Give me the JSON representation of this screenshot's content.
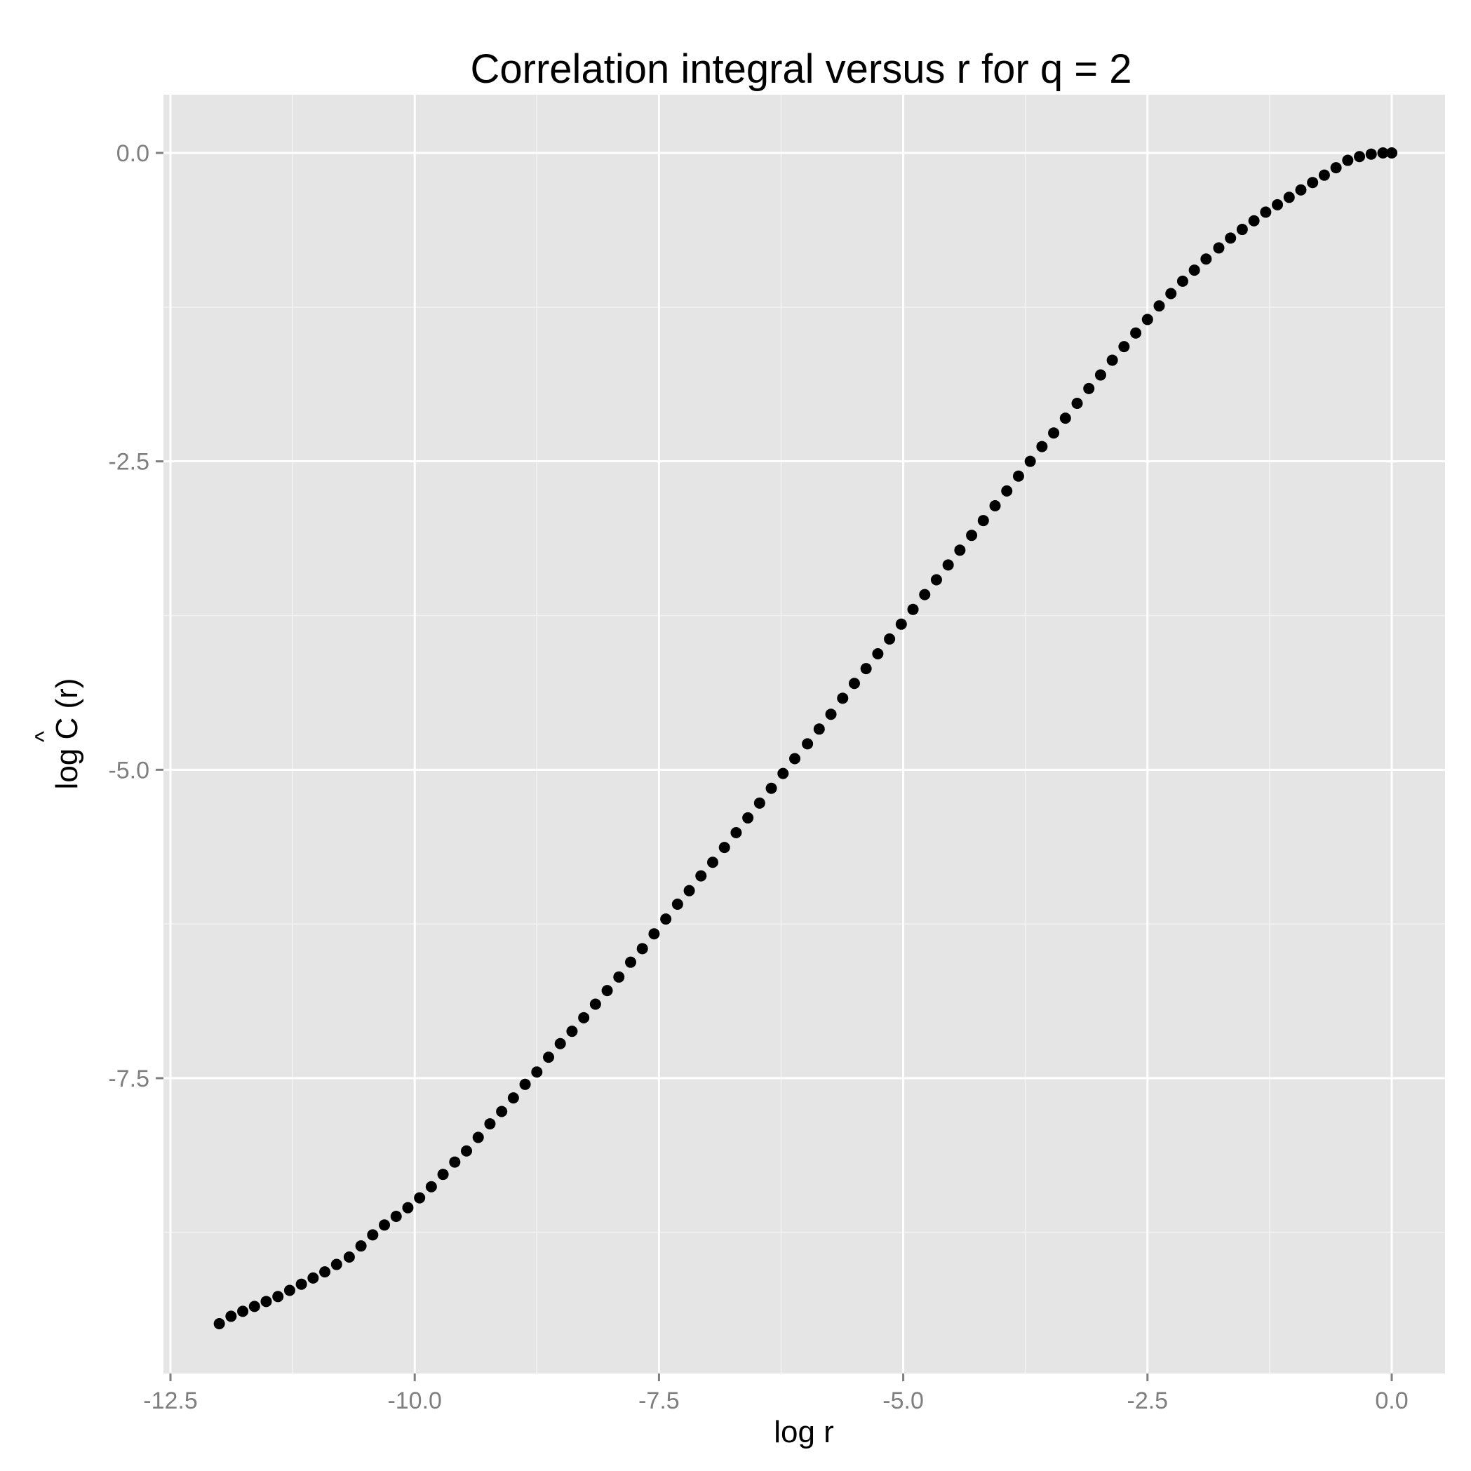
{
  "chart_data": {
    "type": "scatter",
    "title": "Correlation integral versus r for q = 2",
    "xlabel": "log r",
    "ylabel_text": "log C (r)",
    "ylabel_prefix": "log ",
    "ylabel_symbol": "C",
    "ylabel_hat": "^",
    "ylabel_suffix": " (r)",
    "xlim": [
      -12.5,
      0.0
    ],
    "ylim": [
      -9.8,
      0.5
    ],
    "xticks": [
      -12.5,
      -10.0,
      -7.5,
      -5.0,
      -2.5,
      0.0
    ],
    "xtick_labels": [
      "-12.5",
      "-10.0",
      "-7.5",
      "-5.0",
      "-2.5",
      "0.0"
    ],
    "yticks": [
      0.0,
      -2.5,
      -5.0,
      -7.5
    ],
    "ytick_labels": [
      "0.0",
      "-2.5",
      "-5.0",
      "-7.5"
    ],
    "grid": true,
    "colors": {
      "panel_bg": "#e5e5e5",
      "grid_major": "#ffffff",
      "grid_minor": "#f2f2f2",
      "point": "#000000",
      "tick_text": "#7f7f7f"
    },
    "points": [
      [
        -12.0,
        -9.49
      ],
      [
        -11.88,
        -9.43
      ],
      [
        -11.76,
        -9.39
      ],
      [
        -11.64,
        -9.35
      ],
      [
        -11.52,
        -9.31
      ],
      [
        -11.4,
        -9.27
      ],
      [
        -11.28,
        -9.22
      ],
      [
        -11.16,
        -9.17
      ],
      [
        -11.04,
        -9.12
      ],
      [
        -10.92,
        -9.07
      ],
      [
        -10.8,
        -9.01
      ],
      [
        -10.67,
        -8.95
      ],
      [
        -10.55,
        -8.86
      ],
      [
        -10.43,
        -8.77
      ],
      [
        -10.31,
        -8.69
      ],
      [
        -10.19,
        -8.62
      ],
      [
        -10.07,
        -8.55
      ],
      [
        -9.95,
        -8.47
      ],
      [
        -9.83,
        -8.38
      ],
      [
        -9.71,
        -8.28
      ],
      [
        -9.59,
        -8.18
      ],
      [
        -9.47,
        -8.09
      ],
      [
        -9.35,
        -7.98
      ],
      [
        -9.23,
        -7.87
      ],
      [
        -9.11,
        -7.77
      ],
      [
        -8.99,
        -7.66
      ],
      [
        -8.87,
        -7.55
      ],
      [
        -8.75,
        -7.45
      ],
      [
        -8.63,
        -7.33
      ],
      [
        -8.51,
        -7.22
      ],
      [
        -8.39,
        -7.12
      ],
      [
        -8.27,
        -7.01
      ],
      [
        -8.15,
        -6.9
      ],
      [
        -8.03,
        -6.79
      ],
      [
        -7.91,
        -6.68
      ],
      [
        -7.79,
        -6.56
      ],
      [
        -7.67,
        -6.45
      ],
      [
        -7.55,
        -6.33
      ],
      [
        -7.43,
        -6.21
      ],
      [
        -7.31,
        -6.09
      ],
      [
        -7.19,
        -5.98
      ],
      [
        -7.07,
        -5.86
      ],
      [
        -6.95,
        -5.75
      ],
      [
        -6.83,
        -5.63
      ],
      [
        -6.71,
        -5.51
      ],
      [
        -6.59,
        -5.39
      ],
      [
        -6.47,
        -5.27
      ],
      [
        -6.35,
        -5.15
      ],
      [
        -6.23,
        -5.03
      ],
      [
        -6.11,
        -4.91
      ],
      [
        -5.98,
        -4.79
      ],
      [
        -5.86,
        -4.67
      ],
      [
        -5.74,
        -4.55
      ],
      [
        -5.62,
        -4.42
      ],
      [
        -5.5,
        -4.3
      ],
      [
        -5.38,
        -4.18
      ],
      [
        -5.26,
        -4.06
      ],
      [
        -5.14,
        -3.94
      ],
      [
        -5.02,
        -3.82
      ],
      [
        -4.9,
        -3.7
      ],
      [
        -4.78,
        -3.58
      ],
      [
        -4.66,
        -3.46
      ],
      [
        -4.54,
        -3.34
      ],
      [
        -4.42,
        -3.22
      ],
      [
        -4.3,
        -3.1
      ],
      [
        -4.18,
        -2.98
      ],
      [
        -4.06,
        -2.86
      ],
      [
        -3.94,
        -2.74
      ],
      [
        -3.82,
        -2.62
      ],
      [
        -3.7,
        -2.5
      ],
      [
        -3.58,
        -2.38
      ],
      [
        -3.46,
        -2.27
      ],
      [
        -3.34,
        -2.15
      ],
      [
        -3.22,
        -2.03
      ],
      [
        -3.1,
        -1.91
      ],
      [
        -2.98,
        -1.8
      ],
      [
        -2.86,
        -1.68
      ],
      [
        -2.74,
        -1.57
      ],
      [
        -2.62,
        -1.46
      ],
      [
        -2.5,
        -1.35
      ],
      [
        -2.38,
        -1.24
      ],
      [
        -2.26,
        -1.14
      ],
      [
        -2.14,
        -1.04
      ],
      [
        -2.02,
        -0.95
      ],
      [
        -1.9,
        -0.86
      ],
      [
        -1.77,
        -0.77
      ],
      [
        -1.65,
        -0.69
      ],
      [
        -1.53,
        -0.62
      ],
      [
        -1.41,
        -0.55
      ],
      [
        -1.29,
        -0.48
      ],
      [
        -1.17,
        -0.42
      ],
      [
        -1.05,
        -0.36
      ],
      [
        -0.93,
        -0.3
      ],
      [
        -0.81,
        -0.24
      ],
      [
        -0.69,
        -0.18
      ],
      [
        -0.57,
        -0.12
      ],
      [
        -0.45,
        -0.06
      ],
      [
        -0.33,
        -0.03
      ],
      [
        -0.21,
        -0.01
      ],
      [
        -0.09,
        0.0
      ],
      [
        0.0,
        0.0
      ]
    ]
  }
}
